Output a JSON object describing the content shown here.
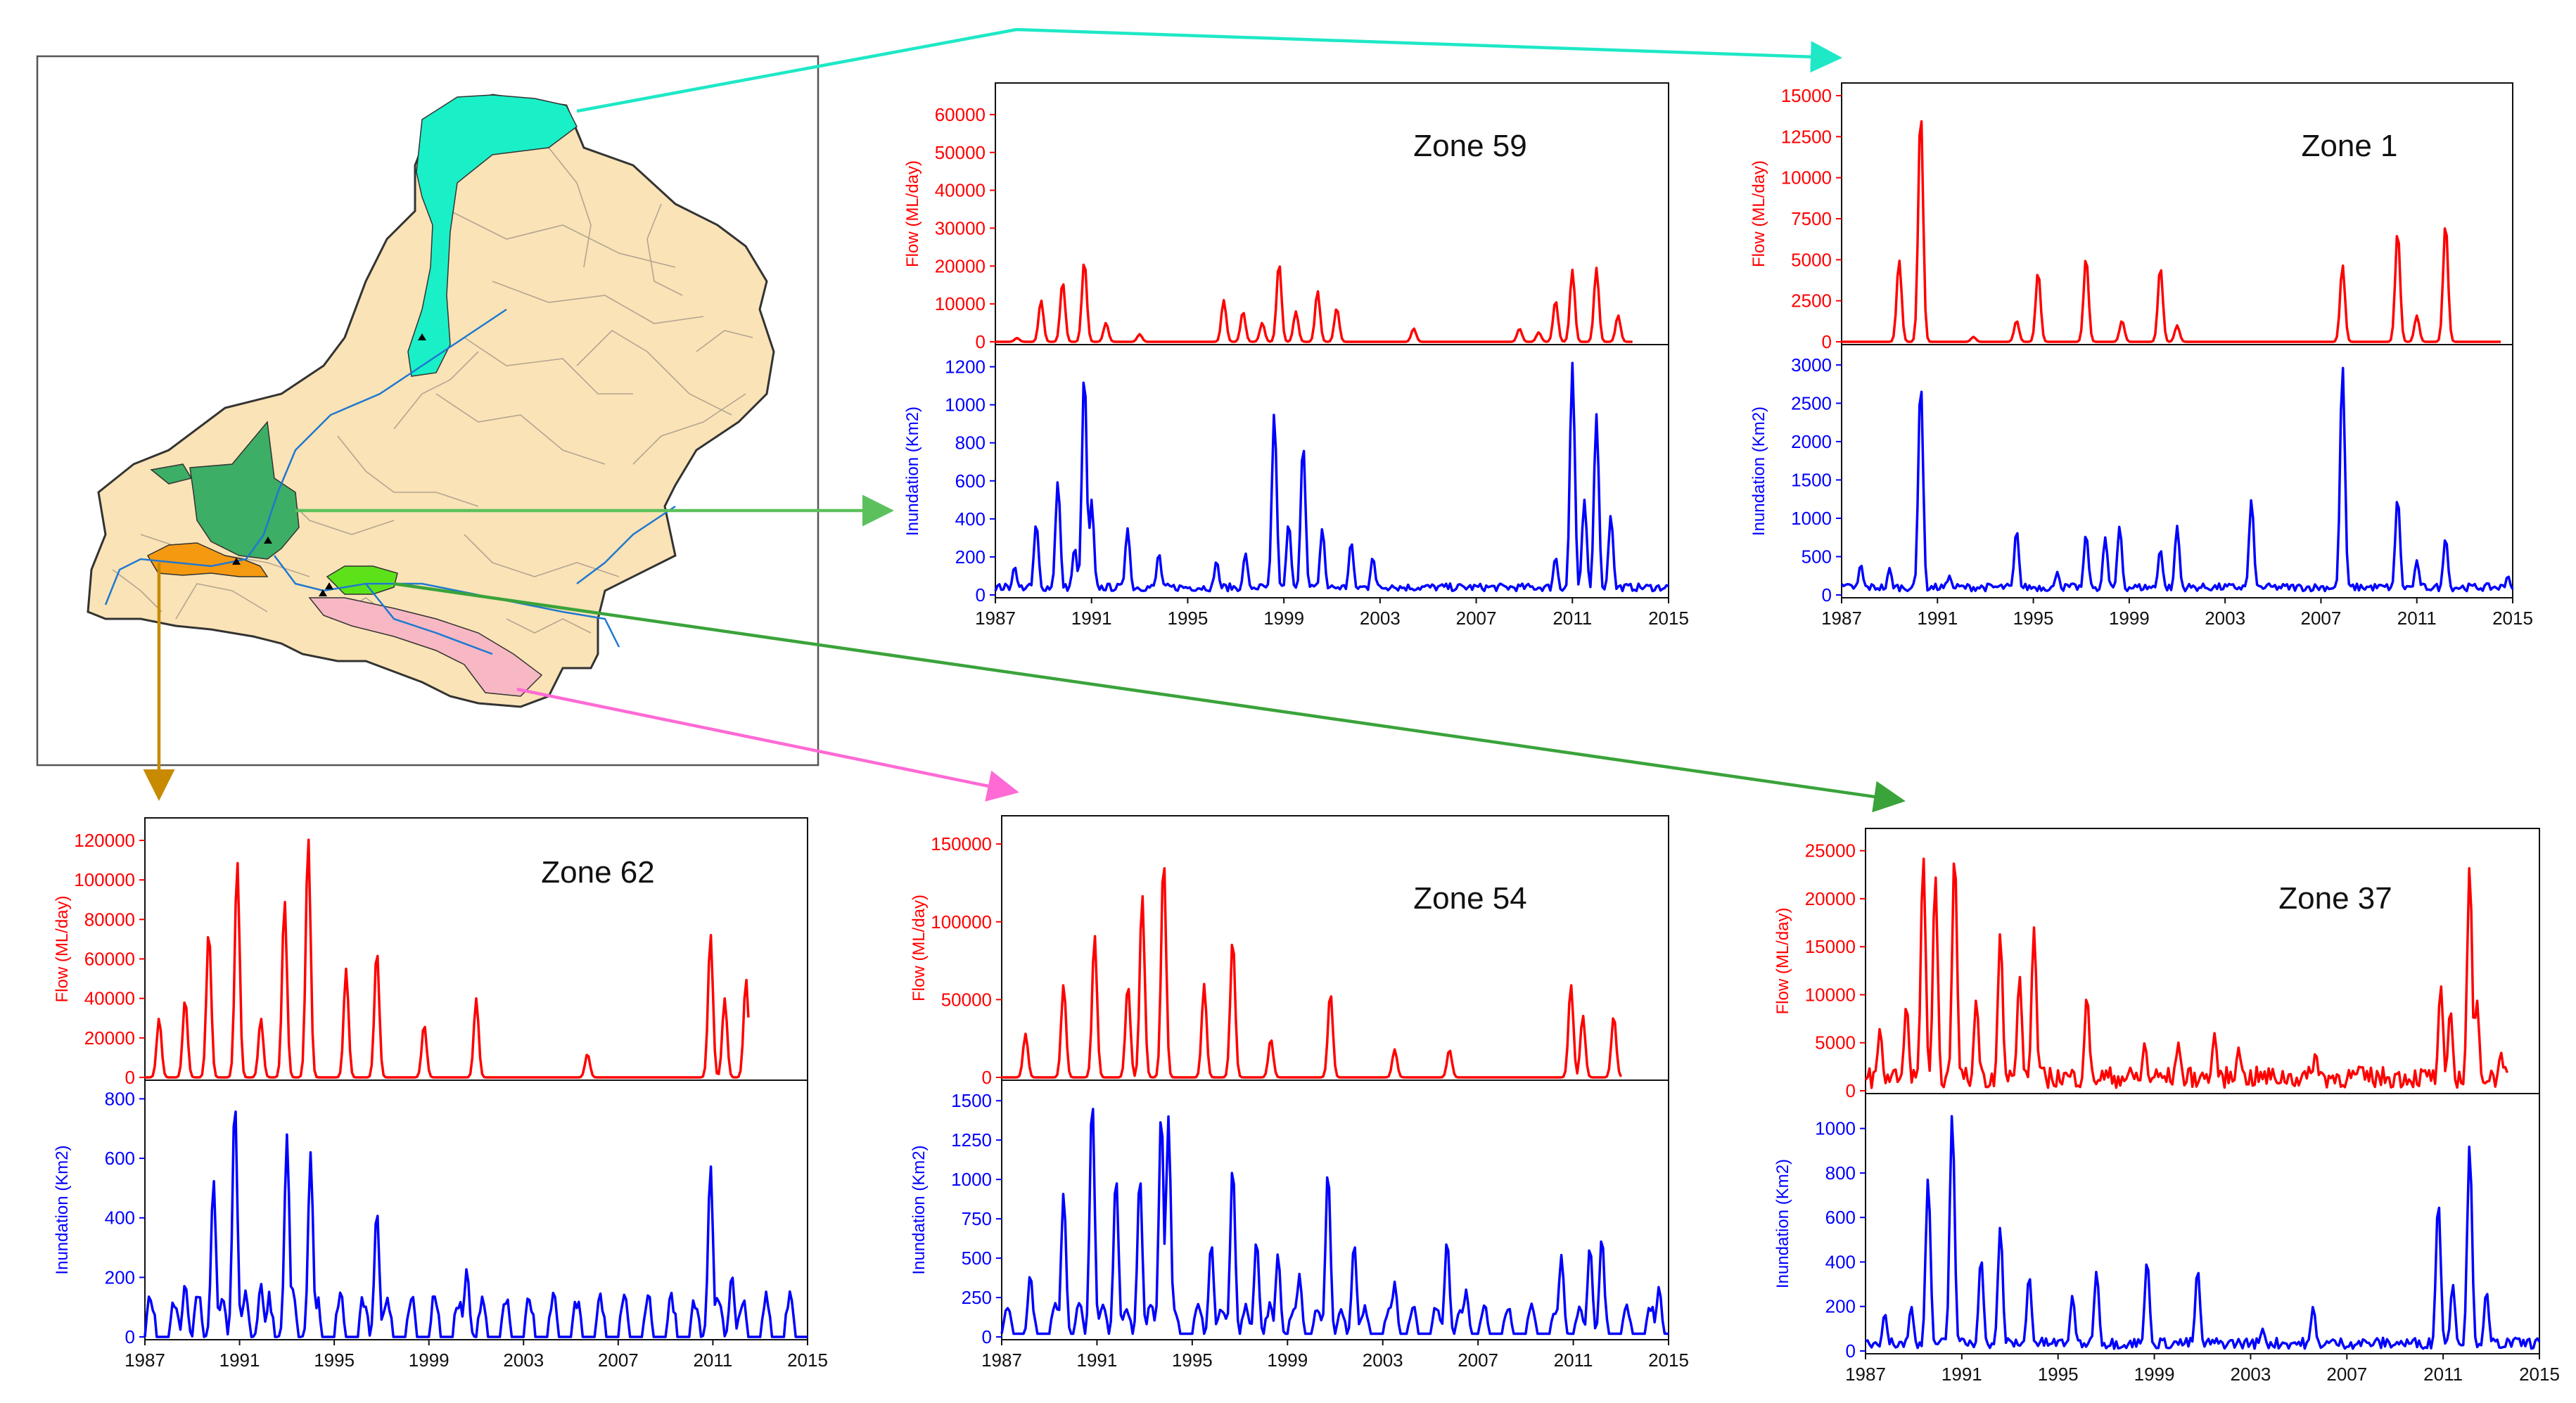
{
  "figure": {
    "colors": {
      "flow": "#ff0000",
      "inundation": "#0000ff",
      "map_base": "#fae3b6",
      "river": "#1f78d0",
      "arrow_zone59": "#1ee8c6",
      "arrow_zone1": "#5cc15c",
      "arrow_zone37": "#3aa33a",
      "arrow_zone62": "#c88a00",
      "arrow_zone54": "#ff6ad5",
      "zone_cyan": "#19f0c8",
      "zone_darkgreen": "#3cae66",
      "zone_orange": "#f59a10",
      "zone_lightgreen": "#5de21a",
      "zone_pink": "#f7b8c4"
    }
  },
  "chart_data": [
    {
      "type": "line",
      "title": "Zone 59",
      "xlabel": "",
      "x_ticks": [
        "1987",
        "1991",
        "1995",
        "1999",
        "2003",
        "2007",
        "2011",
        "2015"
      ],
      "xlim": [
        1987,
        2015
      ],
      "series": [
        {
          "name": "Flow",
          "ylabel": "Flow (ML/day)",
          "ylim": [
            0,
            65000
          ],
          "y_ticks": [
            "0",
            "10000",
            "20000",
            "30000",
            "40000",
            "50000",
            "60000"
          ],
          "y_tick_values": [
            0,
            10000,
            20000,
            30000,
            40000,
            50000,
            60000
          ],
          "peaks": [
            [
              1987.9,
              1000
            ],
            [
              1988.9,
              11000
            ],
            [
              1989.8,
              16000
            ],
            [
              1990.7,
              21500
            ],
            [
              1991.6,
              5000
            ],
            [
              1993,
              2000
            ],
            [
              1996.5,
              11000
            ],
            [
              1997.3,
              8000
            ],
            [
              1998.1,
              5000
            ],
            [
              1998.8,
              21000
            ],
            [
              1999.5,
              8000
            ],
            [
              2000.4,
              13500
            ],
            [
              2001.2,
              9000
            ],
            [
              2004.4,
              3500
            ],
            [
              2008.8,
              3500
            ],
            [
              2009.6,
              2500
            ],
            [
              2010.3,
              11000
            ],
            [
              2011,
              19000
            ],
            [
              2012,
              19500
            ],
            [
              2012.9,
              7000
            ]
          ],
          "end": 2013.5
        },
        {
          "name": "Inundation",
          "ylabel": "Inundation (Km2)",
          "ylim": [
            0,
            1250
          ],
          "y_ticks": [
            "0",
            "200",
            "400",
            "600",
            "800",
            "1000",
            "1200"
          ],
          "y_tick_values": [
            0,
            200,
            400,
            600,
            800,
            1000,
            1200
          ],
          "peaks": [
            [
              1987.8,
              150
            ],
            [
              1988.7,
              380
            ],
            [
              1989.6,
              600
            ],
            [
              1990.3,
              250
            ],
            [
              1990.7,
              1180
            ],
            [
              1991,
              500
            ],
            [
              1992.5,
              350
            ],
            [
              1993.8,
              220
            ],
            [
              1996.2,
              180
            ],
            [
              1997.4,
              220
            ],
            [
              1998.6,
              960
            ],
            [
              1999.2,
              380
            ],
            [
              1999.8,
              800
            ],
            [
              2000.6,
              350
            ],
            [
              2001.8,
              280
            ],
            [
              2002.7,
              200
            ],
            [
              2003.5,
              50
            ],
            [
              2010.3,
              200
            ],
            [
              2011,
              1220
            ],
            [
              2011.5,
              500
            ],
            [
              2012,
              950
            ],
            [
              2012.6,
              420
            ]
          ],
          "floor": [
            20,
            60
          ],
          "end": 2015
        }
      ]
    },
    {
      "type": "line",
      "title": "Zone 1",
      "xlabel": "",
      "x_ticks": [
        "1987",
        "1991",
        "1995",
        "1999",
        "2003",
        "2007",
        "2011",
        "2015"
      ],
      "xlim": [
        1987,
        2015
      ],
      "series": [
        {
          "name": "Flow",
          "ylabel": "Flow (ML/day)",
          "ylim": [
            0,
            15000
          ],
          "y_ticks": [
            "0",
            "2500",
            "5000",
            "7500",
            "10000",
            "12500",
            "15000"
          ],
          "y_tick_values": [
            0,
            2500,
            5000,
            7500,
            10000,
            12500,
            15000
          ],
          "peaks": [
            [
              1989.4,
              5000
            ],
            [
              1990.3,
              14200
            ],
            [
              1992.5,
              300
            ],
            [
              1994.3,
              1300
            ],
            [
              1995.2,
              4300
            ],
            [
              1997.2,
              5200
            ],
            [
              1998.7,
              1300
            ],
            [
              2000.3,
              4600
            ],
            [
              2001,
              1000
            ],
            [
              2007.9,
              4700
            ],
            [
              2010.2,
              6800
            ],
            [
              2011,
              1600
            ],
            [
              2012.2,
              7300
            ]
          ],
          "end": 2014.5
        },
        {
          "name": "Inundation",
          "ylabel": "Inundation (Km2)",
          "ylim": [
            0,
            3100
          ],
          "y_ticks": [
            "0",
            "500",
            "1000",
            "1500",
            "2000",
            "2500",
            "3000"
          ],
          "y_tick_values": [
            0,
            500,
            1000,
            1500,
            2000,
            2500,
            3000
          ],
          "peaks": [
            [
              1987.8,
              400
            ],
            [
              1989,
              350
            ],
            [
              1990.3,
              2800
            ],
            [
              1991.5,
              250
            ],
            [
              1994.3,
              850
            ],
            [
              1996,
              300
            ],
            [
              1997.2,
              800
            ],
            [
              1998,
              750
            ],
            [
              1998.6,
              900
            ],
            [
              2000.3,
              600
            ],
            [
              2001,
              900
            ],
            [
              2004.1,
              1250
            ],
            [
              2007.9,
              3000
            ],
            [
              2010.2,
              1280
            ],
            [
              2011,
              450
            ],
            [
              2012.2,
              750
            ],
            [
              2014.8,
              250
            ]
          ],
          "floor": [
            50,
            150
          ],
          "end": 2015
        }
      ]
    },
    {
      "type": "line",
      "title": "Zone 62",
      "xlabel": "",
      "x_ticks": [
        "1987",
        "1991",
        "1995",
        "1999",
        "2003",
        "2007",
        "2011",
        "2015"
      ],
      "xlim": [
        1987,
        2015
      ],
      "series": [
        {
          "name": "Flow",
          "ylabel": "Flow (ML/day)",
          "ylim": [
            0,
            125000
          ],
          "y_ticks": [
            "0",
            "20000",
            "40000",
            "60000",
            "80000",
            "100000",
            "120000"
          ],
          "y_tick_values": [
            0,
            20000,
            40000,
            60000,
            80000,
            100000,
            120000
          ],
          "peaks": [
            [
              1987.6,
              30000
            ],
            [
              1988.7,
              40000
            ],
            [
              1989.7,
              75000
            ],
            [
              1990.9,
              110000
            ],
            [
              1991.9,
              30000
            ],
            [
              1992.9,
              90000
            ],
            [
              1993.9,
              122000
            ],
            [
              1995.5,
              55000
            ],
            [
              1996.8,
              65000
            ],
            [
              1998.8,
              27000
            ],
            [
              2001,
              40000
            ],
            [
              2005.7,
              12000
            ],
            [
              2010.9,
              73000
            ],
            [
              2011.5,
              40000
            ],
            [
              2012.4,
              50000
            ]
          ],
          "end": 2012.5
        },
        {
          "name": "Inundation",
          "ylabel": "Inundation (Km2)",
          "ylim": [
            0,
            820
          ],
          "y_ticks": [
            "0",
            "200",
            "400",
            "600",
            "800"
          ],
          "y_tick_values": [
            0,
            200,
            400,
            600,
            800
          ],
          "peaks": [
            [
              1988.7,
              180
            ],
            [
              1989.9,
              530
            ],
            [
              1990.8,
              800
            ],
            [
              1991.9,
              180
            ],
            [
              1993,
              680
            ],
            [
              1994,
              620
            ],
            [
              1996.8,
              430
            ],
            [
              2000.6,
              230
            ],
            [
              2010.9,
              580
            ],
            [
              2011.8,
              210
            ]
          ],
          "floor": [
            0,
            160
          ],
          "seasonal": true,
          "end": 2015
        }
      ]
    },
    {
      "type": "line",
      "title": "Zone 54",
      "xlabel": "",
      "x_ticks": [
        "1987",
        "1991",
        "1995",
        "1999",
        "2003",
        "2007",
        "2011",
        "2015"
      ],
      "xlim": [
        1987,
        2015
      ],
      "series": [
        {
          "name": "Flow",
          "ylabel": "Flow (ML/day)",
          "ylim": [
            0,
            160000
          ],
          "y_ticks": [
            "0",
            "50000",
            "100000",
            "150000"
          ],
          "y_tick_values": [
            0,
            50000,
            100000,
            150000
          ],
          "peaks": [
            [
              1988,
              28000
            ],
            [
              1989.6,
              60000
            ],
            [
              1990.9,
              92000
            ],
            [
              1992.3,
              60000
            ],
            [
              1992.9,
              118000
            ],
            [
              1993.8,
              142000
            ],
            [
              1995.5,
              60000
            ],
            [
              1996.7,
              90000
            ],
            [
              1998.3,
              25000
            ],
            [
              2000.8,
              55000
            ],
            [
              2003.5,
              18000
            ],
            [
              2005.8,
              18000
            ],
            [
              2010.9,
              60000
            ],
            [
              2011.4,
              40000
            ],
            [
              2012.7,
              40000
            ]
          ],
          "end": 2013
        },
        {
          "name": "Inundation",
          "ylabel": "Inundation (Km2)",
          "ylim": [
            0,
            1550
          ],
          "y_ticks": [
            "0",
            "250",
            "500",
            "750",
            "1000",
            "1250",
            "1500"
          ],
          "y_tick_values": [
            0,
            250,
            500,
            750,
            1000,
            1250,
            1500
          ],
          "peaks": [
            [
              1988.2,
              400
            ],
            [
              1989.6,
              920
            ],
            [
              1990.8,
              1530
            ],
            [
              1991.8,
              1030
            ],
            [
              1992.8,
              1030
            ],
            [
              1993.7,
              1440
            ],
            [
              1994,
              1400
            ],
            [
              1995.8,
              600
            ],
            [
              1996.7,
              1100
            ],
            [
              1997.7,
              620
            ],
            [
              1998.6,
              530
            ],
            [
              1999.5,
              400
            ],
            [
              2000.7,
              1070
            ],
            [
              2001.8,
              600
            ],
            [
              2003.5,
              350
            ],
            [
              2005.7,
              620
            ],
            [
              2006.5,
              300
            ],
            [
              2010.5,
              520
            ],
            [
              2011.7,
              580
            ],
            [
              2012.2,
              640
            ],
            [
              2014.6,
              320
            ]
          ],
          "floor": [
            20,
            220
          ],
          "seasonal": true,
          "end": 2015
        }
      ]
    },
    {
      "type": "line",
      "title": "Zone 37",
      "xlabel": "",
      "x_ticks": [
        "1987",
        "1991",
        "1995",
        "1999",
        "2003",
        "2007",
        "2011",
        "2015"
      ],
      "xlim": [
        1987,
        2015
      ],
      "series": [
        {
          "name": "Flow",
          "ylabel": "Flow (ML/day)",
          "ylim": [
            0,
            26000
          ],
          "y_ticks": [
            "0",
            "5000",
            "10000",
            "15000",
            "20000",
            "25000"
          ],
          "y_tick_values": [
            0,
            5000,
            10000,
            15000,
            20000,
            25000
          ],
          "peaks": [
            [
              1987.6,
              6500
            ],
            [
              1988.7,
              9000
            ],
            [
              1989.4,
              24500
            ],
            [
              1989.9,
              22500
            ],
            [
              1990.7,
              25000
            ],
            [
              1991.6,
              9500
            ],
            [
              1992.6,
              16500
            ],
            [
              1993.4,
              12000
            ],
            [
              1994,
              17000
            ],
            [
              1996.2,
              10000
            ],
            [
              1998.6,
              5000
            ],
            [
              2000,
              5000
            ],
            [
              2001.5,
              6000
            ],
            [
              2002.5,
              4500
            ],
            [
              2005.7,
              4000
            ],
            [
              2007.5,
              2500
            ],
            [
              2010.9,
              11000
            ],
            [
              2011.3,
              8500
            ],
            [
              2012.1,
              23500
            ],
            [
              2012.4,
              9500
            ],
            [
              2013.4,
              4000
            ]
          ],
          "floor": [
            300,
            2500
          ],
          "end": 2013.7
        },
        {
          "name": "Inundation",
          "ylabel": "Inundation (Km2)",
          "ylim": [
            0,
            1100
          ],
          "y_ticks": [
            "0",
            "200",
            "400",
            "600",
            "800",
            "1000"
          ],
          "y_tick_values": [
            0,
            200,
            400,
            600,
            800,
            1000
          ],
          "peaks": [
            [
              1987.8,
              170
            ],
            [
              1988.9,
              200
            ],
            [
              1989.6,
              780
            ],
            [
              1990.6,
              1070
            ],
            [
              1991.8,
              420
            ],
            [
              1992.6,
              560
            ],
            [
              1993.8,
              340
            ],
            [
              1995.6,
              250
            ],
            [
              1996.6,
              360
            ],
            [
              1998.7,
              410
            ],
            [
              2000.8,
              370
            ],
            [
              2003.5,
              100
            ],
            [
              2005.6,
              200
            ],
            [
              2010.8,
              680
            ],
            [
              2011.4,
              300
            ],
            [
              2012.1,
              930
            ],
            [
              2012.8,
              270
            ]
          ],
          "floor": [
            10,
            60
          ],
          "end": 2015
        }
      ]
    }
  ]
}
